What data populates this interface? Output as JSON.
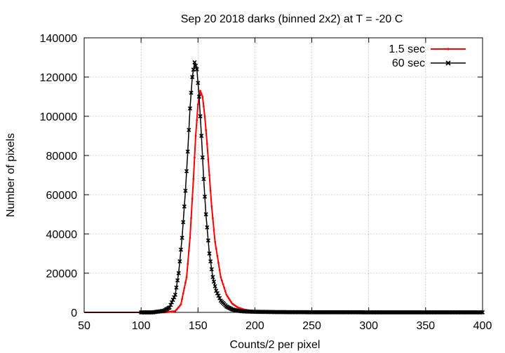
{
  "chart_data": {
    "type": "line",
    "title": "Sep 20 2018 darks (binned 2x2) at T = -20 C",
    "xlabel": "Counts/2 per pixel",
    "ylabel": "Number of pixels",
    "xlim": [
      50,
      400
    ],
    "ylim": [
      0,
      140000
    ],
    "xticks": [
      50,
      100,
      150,
      200,
      250,
      300,
      350,
      400
    ],
    "yticks": [
      0,
      20000,
      40000,
      60000,
      80000,
      100000,
      120000,
      140000
    ],
    "grid": true,
    "legend_position": "top-right",
    "series": [
      {
        "name": "1.5 sec",
        "color": "#ff0000",
        "marker": "dot",
        "x": [
          50,
          100,
          120,
          130,
          135,
          140,
          143,
          146,
          148,
          150,
          152,
          154,
          156,
          158,
          160,
          162,
          165,
          170,
          175,
          180,
          185,
          190,
          195,
          200,
          220,
          250,
          300,
          400
        ],
        "y": [
          0,
          0,
          0,
          600,
          4000,
          18000,
          38000,
          68000,
          90000,
          106000,
          113000,
          110000,
          100000,
          86000,
          70000,
          54000,
          36000,
          18000,
          9000,
          4500,
          2500,
          1500,
          1000,
          700,
          400,
          200,
          100,
          50
        ]
      },
      {
        "name": "60 sec",
        "color": "#000000",
        "marker": "x",
        "x": [
          50,
          100,
          110,
          120,
          125,
          130,
          133,
          136,
          139,
          141,
          143,
          145,
          147,
          149,
          151,
          153,
          155,
          157,
          160,
          163,
          166,
          170,
          175,
          180,
          185,
          190,
          200,
          220,
          250,
          300,
          400
        ],
        "y": [
          0,
          0,
          0,
          800,
          2500,
          9000,
          20000,
          38000,
          62000,
          82000,
          104000,
          120000,
          127500,
          124000,
          110000,
          90000,
          68000,
          50000,
          30000,
          18000,
          11000,
          6000,
          3000,
          1500,
          800,
          500,
          300,
          150,
          80,
          40,
          20
        ]
      }
    ]
  }
}
